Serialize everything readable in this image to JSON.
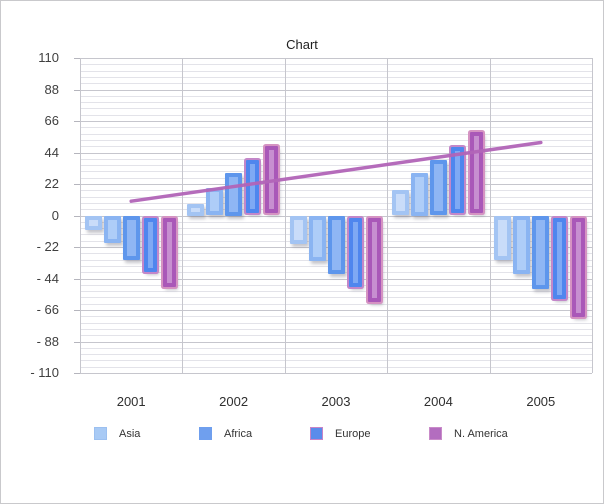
{
  "chart_data": {
    "type": "bar",
    "title": "Chart",
    "categories": [
      "2001",
      "2002",
      "2003",
      "2004",
      "2005"
    ],
    "series": [
      {
        "name": "Asia",
        "in_legend": true,
        "ring_color": "#a3c4f3",
        "fill_color": "#c9dcf9",
        "outline_color": null,
        "values": [
          -10,
          8,
          -20,
          18,
          -31
        ]
      },
      {
        "name": "",
        "in_legend": false,
        "ring_color": "#8ab4f2",
        "fill_color": "#aecdf8",
        "outline_color": null,
        "values": [
          -19,
          19,
          -32,
          30,
          -41
        ]
      },
      {
        "name": "Africa",
        "in_legend": true,
        "ring_color": "#5e96ec",
        "fill_color": "#8fb6f4",
        "outline_color": null,
        "values": [
          -31,
          30,
          -41,
          39,
          -51
        ]
      },
      {
        "name": "Europe",
        "in_legend": true,
        "ring_color": "#4f86ee",
        "fill_color": "#7fa9f4",
        "outline_color": "#c387c9",
        "values": [
          -41,
          40,
          -51,
          49,
          -60
        ]
      },
      {
        "name": "N. America",
        "in_legend": true,
        "ring_color": "#a958b8",
        "fill_color": "#c78fd0",
        "outline_color": "#d593c2",
        "values": [
          -51,
          50,
          -62,
          60,
          -72
        ]
      }
    ],
    "trendline": {
      "color": "#b265b8",
      "start_category": "2001",
      "start_value": 10,
      "end_category": "2005",
      "end_value": 51
    },
    "y_axis": {
      "min": -110,
      "max": 110,
      "major_step": 22,
      "minor_step": 4.4,
      "labels": [
        "110",
        "88",
        "66",
        "44",
        "22",
        "0",
        "- 22",
        "- 44",
        "- 66",
        "- 88",
        "- 110"
      ]
    },
    "x_axis": {
      "labels": [
        "2001",
        "2002",
        "2003",
        "2004",
        "2005"
      ]
    },
    "legend": {
      "position": "bottom",
      "items": [
        {
          "label": "Asia",
          "fill": "#a8caf5",
          "border": "#9cc0f0"
        },
        {
          "label": "Africa",
          "fill": "#6f9fee",
          "border": "#6f9fee"
        },
        {
          "label": "Europe",
          "fill": "#5a8ceb",
          "border": "#c784c7"
        },
        {
          "label": "N. America",
          "fill": "#b36dbf",
          "border": "#c98bc9"
        }
      ]
    },
    "grid": {
      "horizontal_major": true,
      "horizontal_minor": true,
      "vertical": true
    }
  }
}
